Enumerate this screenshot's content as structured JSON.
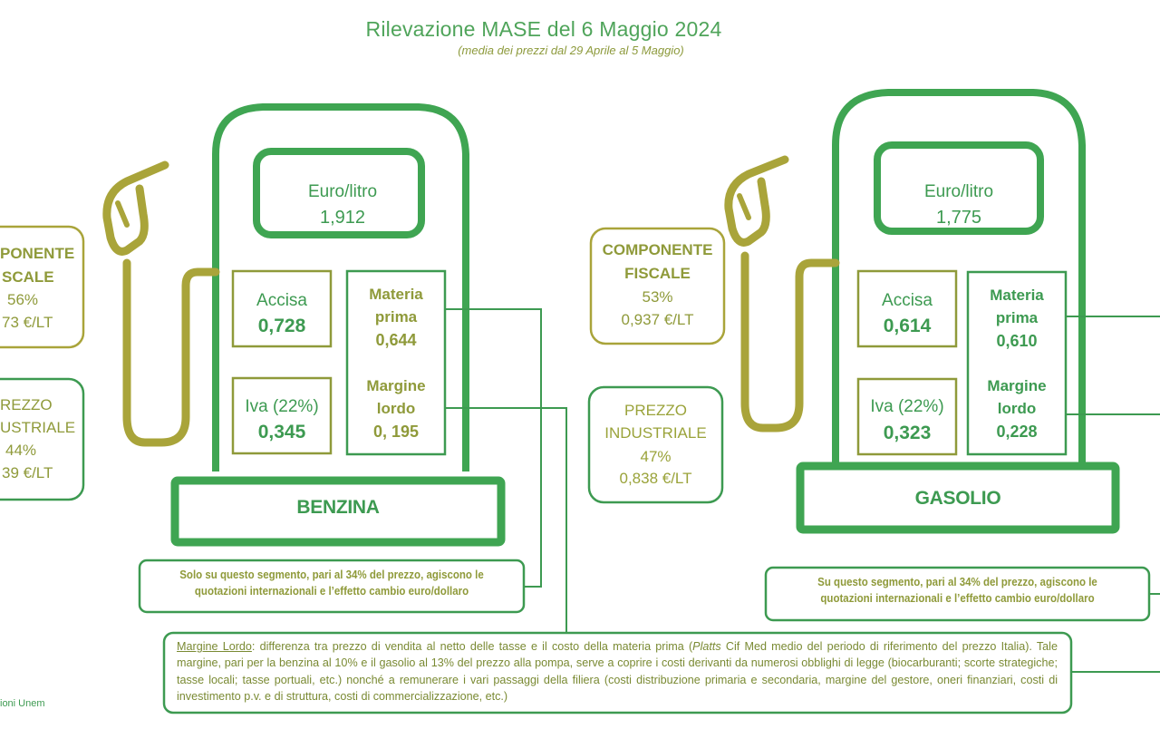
{
  "title": "Rilevazione MASE del 6 Maggio 2024",
  "subtitle": "(media dei prezzi dal 29 Aprile al 5 Maggio)",
  "benzina": {
    "name": "BENZINA",
    "price_label": "Euro/litro",
    "price_value": "1,912",
    "accisa_label": "Accisa",
    "accisa_value": "0,728",
    "iva_label": "Iva (22%)",
    "iva_value": "0,345",
    "materia_label_1": "Materia",
    "materia_label_2": "prima",
    "materia_value": "0,644",
    "margine_label_1": "Margine",
    "margine_label_2": "lordo",
    "margine_value": "0, 195",
    "fiscale_line1": "PONENTE",
    "fiscale_line2": "SCALE",
    "fiscale_pct": "56%",
    "fiscale_value": "73 €/LT",
    "industriale_line1": "REZZO",
    "industriale_line2": "USTRIALE",
    "industriale_pct": "44%",
    "industriale_value": "39 €/LT",
    "note_line1": "Solo su questo segmento, pari al 34% del prezzo, agiscono le",
    "note_line2": "quotazioni internazionali e l’effetto cambio euro/dollaro"
  },
  "gasolio": {
    "name": "GASOLIO",
    "price_label": "Euro/litro",
    "price_value": "1,775",
    "accisa_label": "Accisa",
    "accisa_value": "0,614",
    "iva_label": "Iva (22%)",
    "iva_value": "0,323",
    "materia_label_1": "Materia",
    "materia_label_2": "prima",
    "materia_value": "0,610",
    "margine_label_1": "Margine",
    "margine_label_2": "lordo",
    "margine_value": "0,228",
    "fiscale_line1": "COMPONENTE",
    "fiscale_line2": "FISCALE",
    "fiscale_pct": "53%",
    "fiscale_value": "0,937 €/LT",
    "industriale_line1": "PREZZO",
    "industriale_line2": "INDUSTRIALE",
    "industriale_pct": "47%",
    "industriale_value": "0,838 €/LT",
    "note_line1": "Su questo segmento, pari al 34% del prezzo, agiscono le",
    "note_line2": "quotazioni internazionali e l’effetto cambio euro/dollaro"
  },
  "definition": {
    "term": "Margine Lordo",
    "part1": ": differenza tra prezzo di vendita al netto delle tasse e il costo della materia prima (",
    "platts": "Platts",
    "part2": " Cif Med medio del periodo di riferimento del prezzo Italia). Tale margine, pari per la benzina al 10% e il gasolio al 13% del prezzo alla pompa, serve a coprire i costi derivanti da numerosi obblighi di legge (biocarburanti; scorte strategiche; tasse locali; tasse portuali, etc.) nonché a remunerare i vari passaggi della filiera (costi distribuzione primaria e secondaria, margine del gestore, oneri finanziari, costi di investimento p.v. e di struttura, costi di commercializzazione, etc.)"
  },
  "source": "ioni Unem",
  "colors": {
    "green": "#3d9a51",
    "olive": "#9aa33a"
  }
}
